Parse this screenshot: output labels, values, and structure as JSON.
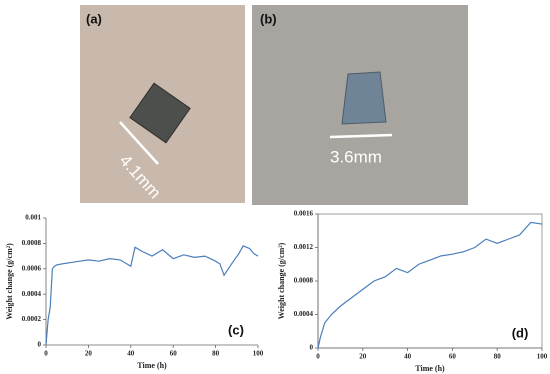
{
  "photos": [
    {
      "label": "(a)",
      "dimension": "4.1mm"
    },
    {
      "label": "(b)",
      "dimension": "3.6mm"
    }
  ],
  "chart_data": [
    {
      "type": "line",
      "xlabel": "Time (h)",
      "ylabel": "Weight change (g/cm²)",
      "annotation": "(c)",
      "color": "#4a7ebb",
      "x": [
        0,
        1,
        2,
        3,
        4,
        5,
        8,
        12,
        16,
        20,
        25,
        30,
        35,
        38,
        40,
        42,
        45,
        50,
        55,
        60,
        65,
        70,
        75,
        80,
        82,
        84,
        86,
        88,
        91,
        93,
        96,
        98,
        100
      ],
      "values": [
        0,
        0.0002,
        0.0003,
        0.0006,
        0.00062,
        0.00063,
        0.00064,
        0.00065,
        0.00066,
        0.00067,
        0.00066,
        0.00068,
        0.00067,
        0.00064,
        0.00062,
        0.00077,
        0.00074,
        0.0007,
        0.00075,
        0.00068,
        0.00071,
        0.00069,
        0.0007,
        0.00066,
        0.00064,
        0.00055,
        0.0006,
        0.00065,
        0.00072,
        0.00078,
        0.00076,
        0.00072,
        0.0007
      ],
      "xlim": [
        0,
        100
      ],
      "xticks": [
        0,
        20,
        40,
        60,
        80,
        100
      ],
      "ylim": [
        0,
        0.001
      ],
      "yticks": [
        0,
        0.0002,
        0.0004,
        0.0006,
        0.0008,
        0.001
      ]
    },
    {
      "type": "line",
      "xlabel": "Time (h)",
      "ylabel": "Weight change (g/cm²)",
      "annotation": "(d)",
      "color": "#4a7ebb",
      "x": [
        0,
        1,
        3,
        6,
        10,
        15,
        20,
        25,
        30,
        35,
        40,
        45,
        50,
        55,
        60,
        65,
        70,
        75,
        80,
        85,
        90,
        95,
        100
      ],
      "values": [
        0,
        0.00012,
        0.0003,
        0.0004,
        0.0005,
        0.0006,
        0.0007,
        0.0008,
        0.00085,
        0.00095,
        0.0009,
        0.001,
        0.00105,
        0.0011,
        0.00112,
        0.00115,
        0.0012,
        0.0013,
        0.00125,
        0.0013,
        0.00135,
        0.0015,
        0.00148
      ],
      "xlim": [
        0,
        100
      ],
      "xticks": [
        0,
        20,
        40,
        60,
        80,
        100
      ],
      "ylim": [
        0,
        0.0016
      ],
      "yticks": [
        0,
        0.0004,
        0.0008,
        0.0012,
        0.0016
      ]
    }
  ]
}
